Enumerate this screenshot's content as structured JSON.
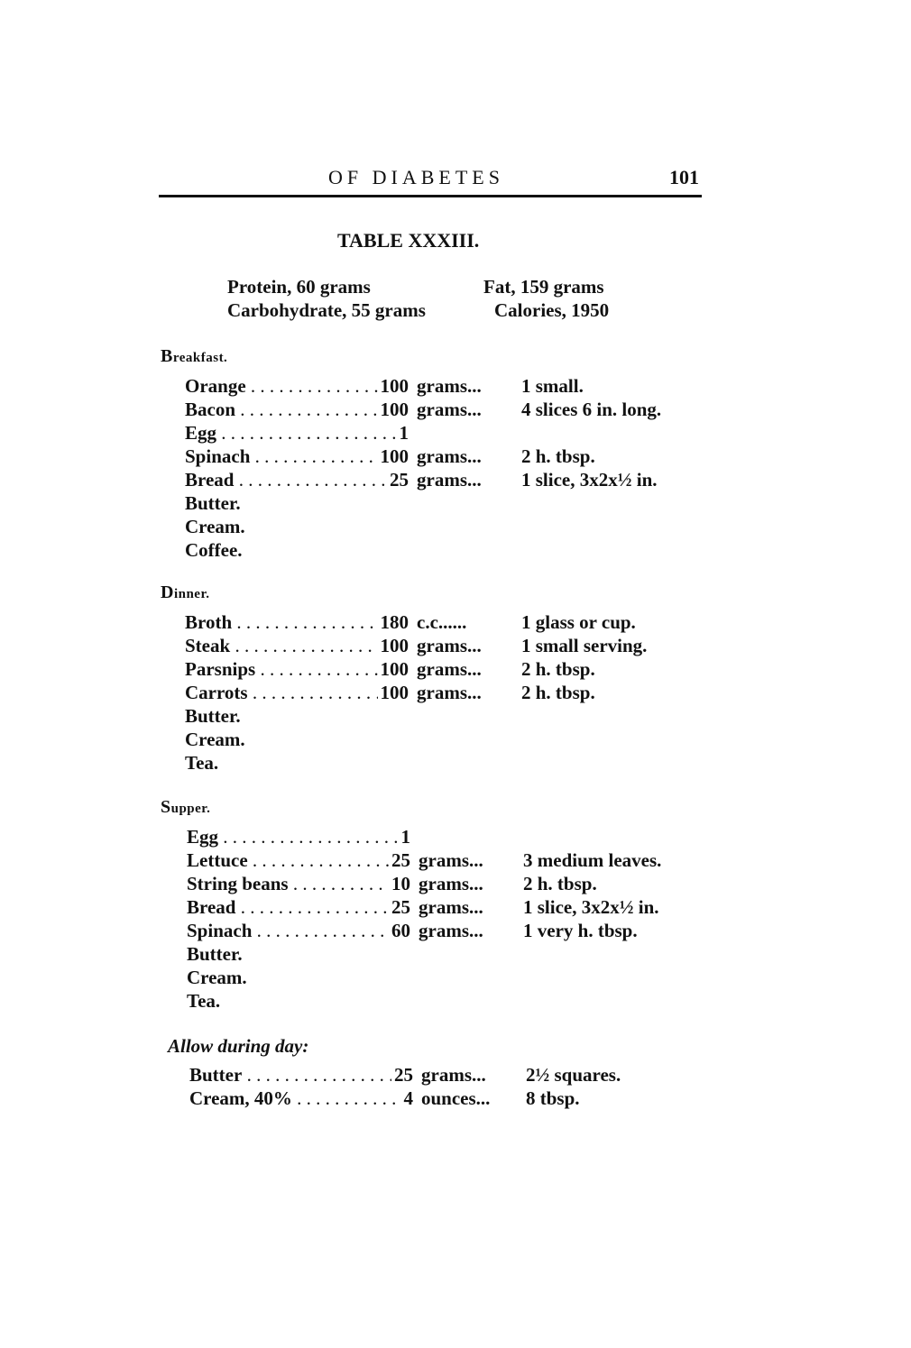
{
  "header": {
    "running_title": "OF DIABETES",
    "page_number": "101"
  },
  "table_title": "TABLE XXXIII.",
  "macros": {
    "protein": "Protein, 60 grams",
    "fat": "Fat, 159 grams",
    "carbohydrate": "Carbohydrate, 55 grams",
    "calories": "Calories, 1950"
  },
  "sections": [
    {
      "heading": "Breakfast.",
      "rows": [
        {
          "item": "Orange",
          "amount": "100",
          "unit": "grams...",
          "measure": "1 small."
        },
        {
          "item": "Bacon",
          "amount": "100",
          "unit": "grams...",
          "measure": "4 slices 6 in. long."
        },
        {
          "item": "Egg",
          "amount": "1",
          "unit": "",
          "measure": ""
        },
        {
          "item": "Spinach",
          "amount": "100",
          "unit": "grams...",
          "measure": "2 h. tbsp."
        },
        {
          "item": "Bread",
          "amount": "25",
          "unit": "grams...",
          "measure": "1 slice, 3x2x½ in."
        },
        {
          "item": "Butter.",
          "amount": "",
          "unit": "",
          "measure": ""
        },
        {
          "item": "Cream.",
          "amount": "",
          "unit": "",
          "measure": ""
        },
        {
          "item": "Coffee.",
          "amount": "",
          "unit": "",
          "measure": ""
        }
      ]
    },
    {
      "heading": "Dinner.",
      "rows": [
        {
          "item": "Broth",
          "amount": "180",
          "unit": "c.c......",
          "measure": "1 glass or cup."
        },
        {
          "item": "Steak",
          "amount": "100",
          "unit": "grams...",
          "measure": "1 small serving."
        },
        {
          "item": "Parsnips",
          "amount": "100",
          "unit": "grams...",
          "measure": "2 h. tbsp."
        },
        {
          "item": "Carrots",
          "amount": "100",
          "unit": "grams...",
          "measure": "2 h. tbsp."
        },
        {
          "item": "Butter.",
          "amount": "",
          "unit": "",
          "measure": ""
        },
        {
          "item": "Cream.",
          "amount": "",
          "unit": "",
          "measure": ""
        },
        {
          "item": "Tea.",
          "amount": "",
          "unit": "",
          "measure": ""
        }
      ]
    },
    {
      "heading": "Supper.",
      "rows": [
        {
          "item": "Egg",
          "amount": "1",
          "unit": "",
          "measure": ""
        },
        {
          "item": "Lettuce",
          "amount": "25",
          "unit": "grams...",
          "measure": "3 medium leaves."
        },
        {
          "item": "String beans",
          "amount": "10",
          "unit": "grams...",
          "measure": "2 h. tbsp."
        },
        {
          "item": "Bread",
          "amount": "25",
          "unit": "grams...",
          "measure": "1 slice, 3x2x½ in."
        },
        {
          "item": "Spinach",
          "amount": "60",
          "unit": "grams...",
          "measure": "1 very h. tbsp."
        },
        {
          "item": "Butter.",
          "amount": "",
          "unit": "",
          "measure": ""
        },
        {
          "item": "Cream.",
          "amount": "",
          "unit": "",
          "measure": ""
        },
        {
          "item": "Tea.",
          "amount": "",
          "unit": "",
          "measure": ""
        }
      ]
    },
    {
      "heading": "Allow during day:",
      "rows": [
        {
          "item": "Butter",
          "amount": "25",
          "unit": "grams...",
          "measure": "2½ squares."
        },
        {
          "item": "Cream, 40%",
          "amount": "4",
          "unit": "ounces...",
          "measure": "8 tbsp."
        }
      ]
    }
  ]
}
